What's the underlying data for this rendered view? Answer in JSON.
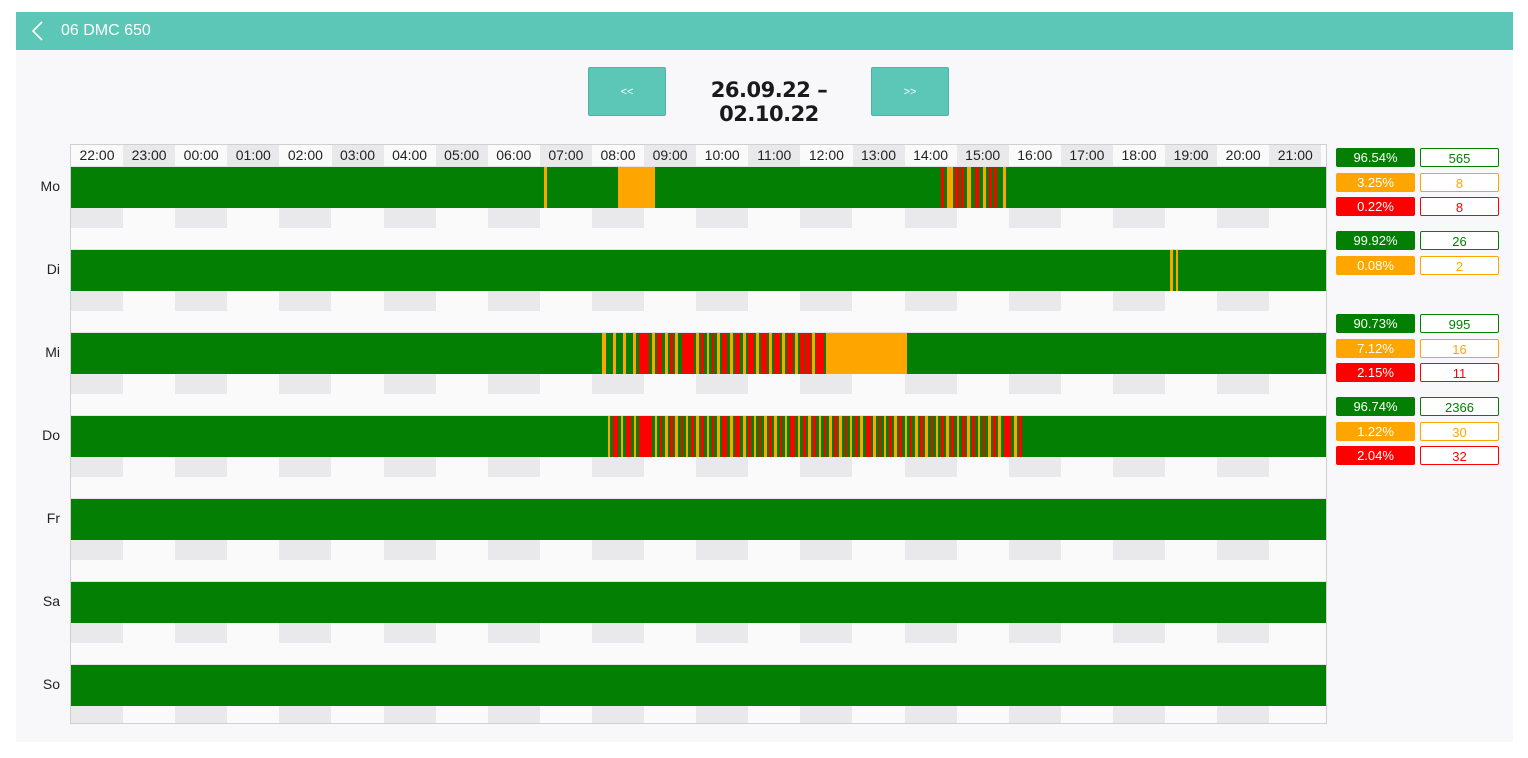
{
  "header": {
    "title": "06 DMC 650",
    "back_icon": "chevron-left-icon"
  },
  "nav": {
    "prev_label": "<<",
    "next_label": ">>",
    "range": "26.09.22 – 02.10.22"
  },
  "colors": {
    "run": "#038003",
    "warn": "#ffa500",
    "stop": "#ff0000",
    "accent": "#5cc7b6"
  },
  "hours": [
    "22:00",
    "23:00",
    "00:00",
    "01:00",
    "02:00",
    "03:00",
    "04:00",
    "05:00",
    "06:00",
    "07:00",
    "08:00",
    "09:00",
    "10:00",
    "11:00",
    "12:00",
    "13:00",
    "14:00",
    "15:00",
    "16:00",
    "17:00",
    "18:00",
    "19:00",
    "20:00",
    "21:00"
  ],
  "days": [
    {
      "label": "Mo",
      "events": [
        {
          "start": 9.08,
          "end": 9.14,
          "state": "warn"
        },
        {
          "start": 10.5,
          "end": 11.2,
          "state": "warn"
        },
        {
          "start": 16.7,
          "end": 16.76,
          "state": "stop"
        },
        {
          "start": 16.82,
          "end": 16.92,
          "state": "warn"
        },
        {
          "start": 16.96,
          "end": 17.04,
          "state": "stop"
        },
        {
          "start": 17.08,
          "end": 17.14,
          "state": "stop"
        },
        {
          "start": 17.2,
          "end": 17.28,
          "state": "warn"
        },
        {
          "start": 17.36,
          "end": 17.42,
          "state": "stop"
        },
        {
          "start": 17.5,
          "end": 17.56,
          "state": "warn"
        },
        {
          "start": 17.62,
          "end": 17.68,
          "state": "stop"
        },
        {
          "start": 17.72,
          "end": 17.78,
          "state": "stop"
        },
        {
          "start": 17.88,
          "end": 17.94,
          "state": "warn"
        }
      ],
      "stats": [
        {
          "pct": "96.54%",
          "count": "565",
          "state": "run"
        },
        {
          "pct": "3.25%",
          "count": "8",
          "state": "warn"
        },
        {
          "pct": "0.22%",
          "count": "8",
          "state": "stop"
        }
      ]
    },
    {
      "label": "Di",
      "events": [
        {
          "start": 21.1,
          "end": 21.15,
          "state": "warn"
        },
        {
          "start": 21.2,
          "end": 21.25,
          "state": "warn"
        }
      ],
      "stats": [
        {
          "pct": "99.92%",
          "count": "26",
          "state": "run"
        },
        {
          "pct": "0.08%",
          "count": "2",
          "state": "warn"
        }
      ]
    },
    {
      "label": "Mi",
      "events": [
        {
          "start": 10.2,
          "end": 10.26,
          "state": "warn"
        },
        {
          "start": 10.4,
          "end": 10.46,
          "state": "warn"
        },
        {
          "start": 10.6,
          "end": 10.66,
          "state": "warn"
        },
        {
          "start": 10.78,
          "end": 10.84,
          "state": "warn"
        },
        {
          "start": 10.9,
          "end": 11.1,
          "state": "stop"
        },
        {
          "start": 11.15,
          "end": 11.2,
          "state": "warn"
        },
        {
          "start": 11.25,
          "end": 11.35,
          "state": "stop"
        },
        {
          "start": 11.4,
          "end": 11.45,
          "state": "warn"
        },
        {
          "start": 11.5,
          "end": 11.55,
          "state": "stop"
        },
        {
          "start": 11.6,
          "end": 11.65,
          "state": "warn"
        },
        {
          "start": 11.72,
          "end": 11.95,
          "state": "stop"
        },
        {
          "start": 12.0,
          "end": 12.05,
          "state": "warn"
        },
        {
          "start": 12.1,
          "end": 12.15,
          "state": "stop"
        },
        {
          "start": 12.2,
          "end": 12.25,
          "state": "warn"
        },
        {
          "start": 12.3,
          "end": 12.35,
          "state": "stop"
        },
        {
          "start": 12.4,
          "end": 12.45,
          "state": "warn"
        },
        {
          "start": 12.5,
          "end": 12.6,
          "state": "stop"
        },
        {
          "start": 12.65,
          "end": 12.7,
          "state": "warn"
        },
        {
          "start": 12.75,
          "end": 12.85,
          "state": "stop"
        },
        {
          "start": 12.9,
          "end": 12.95,
          "state": "warn"
        },
        {
          "start": 13.0,
          "end": 13.1,
          "state": "stop"
        },
        {
          "start": 13.15,
          "end": 13.2,
          "state": "warn"
        },
        {
          "start": 13.25,
          "end": 13.35,
          "state": "stop"
        },
        {
          "start": 13.4,
          "end": 13.45,
          "state": "warn"
        },
        {
          "start": 13.5,
          "end": 13.6,
          "state": "stop"
        },
        {
          "start": 13.65,
          "end": 13.7,
          "state": "warn"
        },
        {
          "start": 13.75,
          "end": 13.85,
          "state": "stop"
        },
        {
          "start": 13.9,
          "end": 13.95,
          "state": "warn"
        },
        {
          "start": 14.0,
          "end": 14.08,
          "state": "stop"
        },
        {
          "start": 14.1,
          "end": 14.2,
          "state": "stop"
        },
        {
          "start": 14.22,
          "end": 14.28,
          "state": "warn"
        },
        {
          "start": 14.3,
          "end": 14.45,
          "state": "stop"
        },
        {
          "start": 14.5,
          "end": 16.05,
          "state": "warn"
        }
      ],
      "stats": [
        {
          "pct": "90.73%",
          "count": "995",
          "state": "run"
        },
        {
          "pct": "7.12%",
          "count": "16",
          "state": "warn"
        },
        {
          "pct": "2.15%",
          "count": "11",
          "state": "stop"
        }
      ]
    },
    {
      "label": "Do",
      "events": [
        {
          "start": 10.3,
          "end": 10.35,
          "state": "warn"
        },
        {
          "start": 10.4,
          "end": 10.5,
          "state": "stop"
        },
        {
          "start": 10.55,
          "end": 10.6,
          "state": "warn"
        },
        {
          "start": 10.65,
          "end": 10.75,
          "state": "stop"
        },
        {
          "start": 10.8,
          "end": 10.85,
          "state": "warn"
        },
        {
          "start": 10.9,
          "end": 11.15,
          "state": "stop"
        },
        {
          "start": 11.2,
          "end": 11.25,
          "state": "warn"
        },
        {
          "start": 11.3,
          "end": 11.35,
          "state": "stop"
        },
        {
          "start": 11.4,
          "end": 11.45,
          "state": "warn"
        },
        {
          "start": 11.5,
          "end": 11.55,
          "state": "stop"
        },
        {
          "start": 11.6,
          "end": 11.65,
          "state": "warn"
        },
        {
          "start": 11.7,
          "end": 11.75,
          "state": "stop"
        },
        {
          "start": 11.8,
          "end": 11.85,
          "state": "warn"
        },
        {
          "start": 11.9,
          "end": 11.95,
          "state": "stop"
        },
        {
          "start": 12.0,
          "end": 12.05,
          "state": "warn"
        },
        {
          "start": 12.1,
          "end": 12.15,
          "state": "stop"
        },
        {
          "start": 12.2,
          "end": 12.25,
          "state": "warn"
        },
        {
          "start": 12.3,
          "end": 12.35,
          "state": "stop"
        },
        {
          "start": 12.4,
          "end": 12.45,
          "state": "warn"
        },
        {
          "start": 12.5,
          "end": 12.6,
          "state": "stop"
        },
        {
          "start": 12.65,
          "end": 12.7,
          "state": "warn"
        },
        {
          "start": 12.75,
          "end": 12.85,
          "state": "stop"
        },
        {
          "start": 12.9,
          "end": 12.95,
          "state": "warn"
        },
        {
          "start": 13.0,
          "end": 13.05,
          "state": "stop"
        },
        {
          "start": 13.1,
          "end": 13.15,
          "state": "warn"
        },
        {
          "start": 13.2,
          "end": 13.25,
          "state": "stop"
        },
        {
          "start": 13.3,
          "end": 13.35,
          "state": "warn"
        },
        {
          "start": 13.4,
          "end": 13.45,
          "state": "stop"
        },
        {
          "start": 13.5,
          "end": 13.55,
          "state": "warn"
        },
        {
          "start": 13.6,
          "end": 13.65,
          "state": "stop"
        },
        {
          "start": 13.7,
          "end": 13.75,
          "state": "warn"
        },
        {
          "start": 13.8,
          "end": 13.9,
          "state": "stop"
        },
        {
          "start": 13.95,
          "end": 14.0,
          "state": "warn"
        },
        {
          "start": 14.05,
          "end": 14.1,
          "state": "stop"
        },
        {
          "start": 14.15,
          "end": 14.2,
          "state": "warn"
        },
        {
          "start": 14.25,
          "end": 14.3,
          "state": "stop"
        },
        {
          "start": 14.35,
          "end": 14.4,
          "state": "warn"
        },
        {
          "start": 14.45,
          "end": 14.5,
          "state": "stop"
        },
        {
          "start": 14.55,
          "end": 14.6,
          "state": "warn"
        },
        {
          "start": 14.65,
          "end": 14.7,
          "state": "stop"
        },
        {
          "start": 14.75,
          "end": 14.8,
          "state": "warn"
        },
        {
          "start": 14.85,
          "end": 14.9,
          "state": "stop"
        },
        {
          "start": 14.95,
          "end": 15.0,
          "state": "warn"
        },
        {
          "start": 15.05,
          "end": 15.1,
          "state": "stop"
        },
        {
          "start": 15.15,
          "end": 15.2,
          "state": "warn"
        },
        {
          "start": 15.25,
          "end": 15.35,
          "state": "stop"
        },
        {
          "start": 15.4,
          "end": 15.45,
          "state": "warn"
        },
        {
          "start": 15.5,
          "end": 15.55,
          "state": "stop"
        },
        {
          "start": 15.6,
          "end": 15.65,
          "state": "warn"
        },
        {
          "start": 15.7,
          "end": 15.75,
          "state": "stop"
        },
        {
          "start": 15.8,
          "end": 15.85,
          "state": "warn"
        },
        {
          "start": 15.9,
          "end": 15.95,
          "state": "stop"
        },
        {
          "start": 16.0,
          "end": 16.05,
          "state": "warn"
        },
        {
          "start": 16.1,
          "end": 16.15,
          "state": "stop"
        },
        {
          "start": 16.2,
          "end": 16.25,
          "state": "warn"
        },
        {
          "start": 16.3,
          "end": 16.35,
          "state": "stop"
        },
        {
          "start": 16.4,
          "end": 16.45,
          "state": "warn"
        },
        {
          "start": 16.5,
          "end": 16.55,
          "state": "stop"
        },
        {
          "start": 16.6,
          "end": 16.65,
          "state": "warn"
        },
        {
          "start": 16.7,
          "end": 16.75,
          "state": "stop"
        },
        {
          "start": 16.8,
          "end": 16.85,
          "state": "warn"
        },
        {
          "start": 16.9,
          "end": 16.95,
          "state": "stop"
        },
        {
          "start": 17.0,
          "end": 17.05,
          "state": "warn"
        },
        {
          "start": 17.1,
          "end": 17.15,
          "state": "stop"
        },
        {
          "start": 17.2,
          "end": 17.25,
          "state": "warn"
        },
        {
          "start": 17.3,
          "end": 17.35,
          "state": "stop"
        },
        {
          "start": 17.4,
          "end": 17.45,
          "state": "warn"
        },
        {
          "start": 17.5,
          "end": 17.55,
          "state": "stop"
        },
        {
          "start": 17.6,
          "end": 17.65,
          "state": "warn"
        },
        {
          "start": 17.7,
          "end": 17.75,
          "state": "stop"
        },
        {
          "start": 17.8,
          "end": 17.85,
          "state": "warn"
        },
        {
          "start": 17.9,
          "end": 18.05,
          "state": "stop"
        },
        {
          "start": 18.1,
          "end": 18.15,
          "state": "warn"
        },
        {
          "start": 18.2,
          "end": 18.25,
          "state": "stop"
        }
      ],
      "stats": [
        {
          "pct": "96.74%",
          "count": "2366",
          "state": "run"
        },
        {
          "pct": "1.22%",
          "count": "30",
          "state": "warn"
        },
        {
          "pct": "2.04%",
          "count": "32",
          "state": "stop"
        }
      ]
    },
    {
      "label": "Fr",
      "events": [],
      "stats": []
    },
    {
      "label": "Sa",
      "events": [],
      "stats": []
    },
    {
      "label": "So",
      "events": [],
      "stats": []
    }
  ]
}
